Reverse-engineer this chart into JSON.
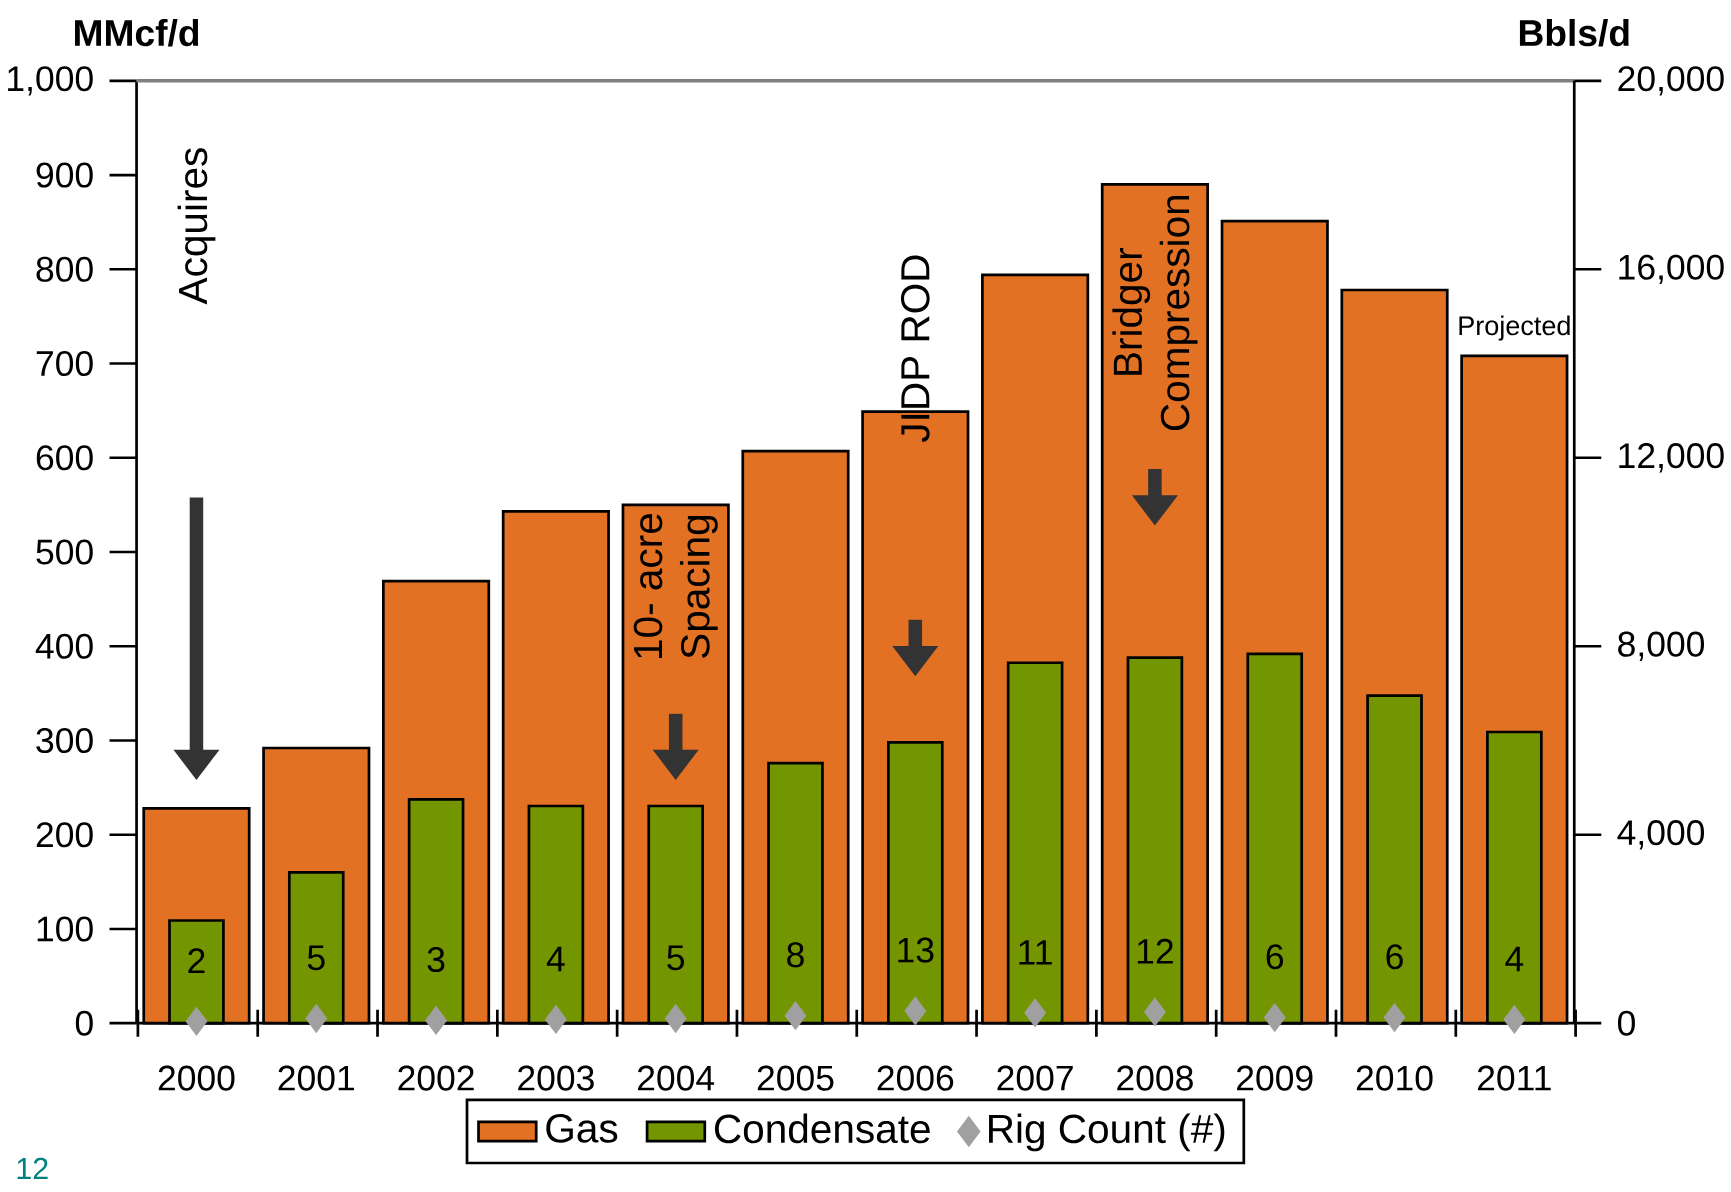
{
  "chart_data": {
    "type": "bar",
    "ylabel": "MMcf/d",
    "y2label": "Bbls/d",
    "categories": [
      "2000",
      "2001",
      "2002",
      "2003",
      "2004",
      "2005",
      "2006",
      "2007",
      "2008",
      "2009",
      "2010",
      "2011"
    ],
    "series": [
      {
        "name": "Gas",
        "color": "#e37124",
        "values": [
          228,
          292,
          469,
          543,
          550,
          607,
          649,
          794,
          890,
          851,
          778,
          708
        ]
      },
      {
        "name": "Condensate",
        "axis": "y2",
        "color": "#739600",
        "values": [
          2180,
          3200,
          4750,
          4610,
          4610,
          5520,
          5960,
          7650,
          7760,
          7840,
          6950,
          6180
        ]
      },
      {
        "name": "Rig Count (#)",
        "type": "scatter",
        "marker": "diamond",
        "color": "#a0a0a0",
        "data_labels": true,
        "values": [
          2,
          5,
          3,
          4,
          5,
          8,
          13,
          11,
          12,
          6,
          6,
          4
        ]
      }
    ],
    "ylim": [
      0,
      1000
    ],
    "yticks": [
      0,
      100,
      200,
      300,
      400,
      500,
      600,
      700,
      800,
      900,
      {
        "value": 1000,
        "label": "1,000"
      }
    ],
    "y2lim": [
      0,
      20000
    ],
    "y2ticks": [
      0,
      {
        "value": 4000,
        "label": "4,000"
      },
      {
        "value": 8000,
        "label": "8,000"
      },
      {
        "value": 12000,
        "label": "12,000"
      },
      {
        "value": 16000,
        "label": "16,000"
      },
      {
        "value": 20000,
        "label": "20,000"
      }
    ],
    "legend": "bottom",
    "grid": false,
    "annotations": [
      "Acquires",
      "10- acre Spacing",
      "JIDP ROD",
      "Bridger Compression",
      {
        "text": "Projected",
        "x": "2011",
        "y": 708
      },
      "12"
    ]
  }
}
